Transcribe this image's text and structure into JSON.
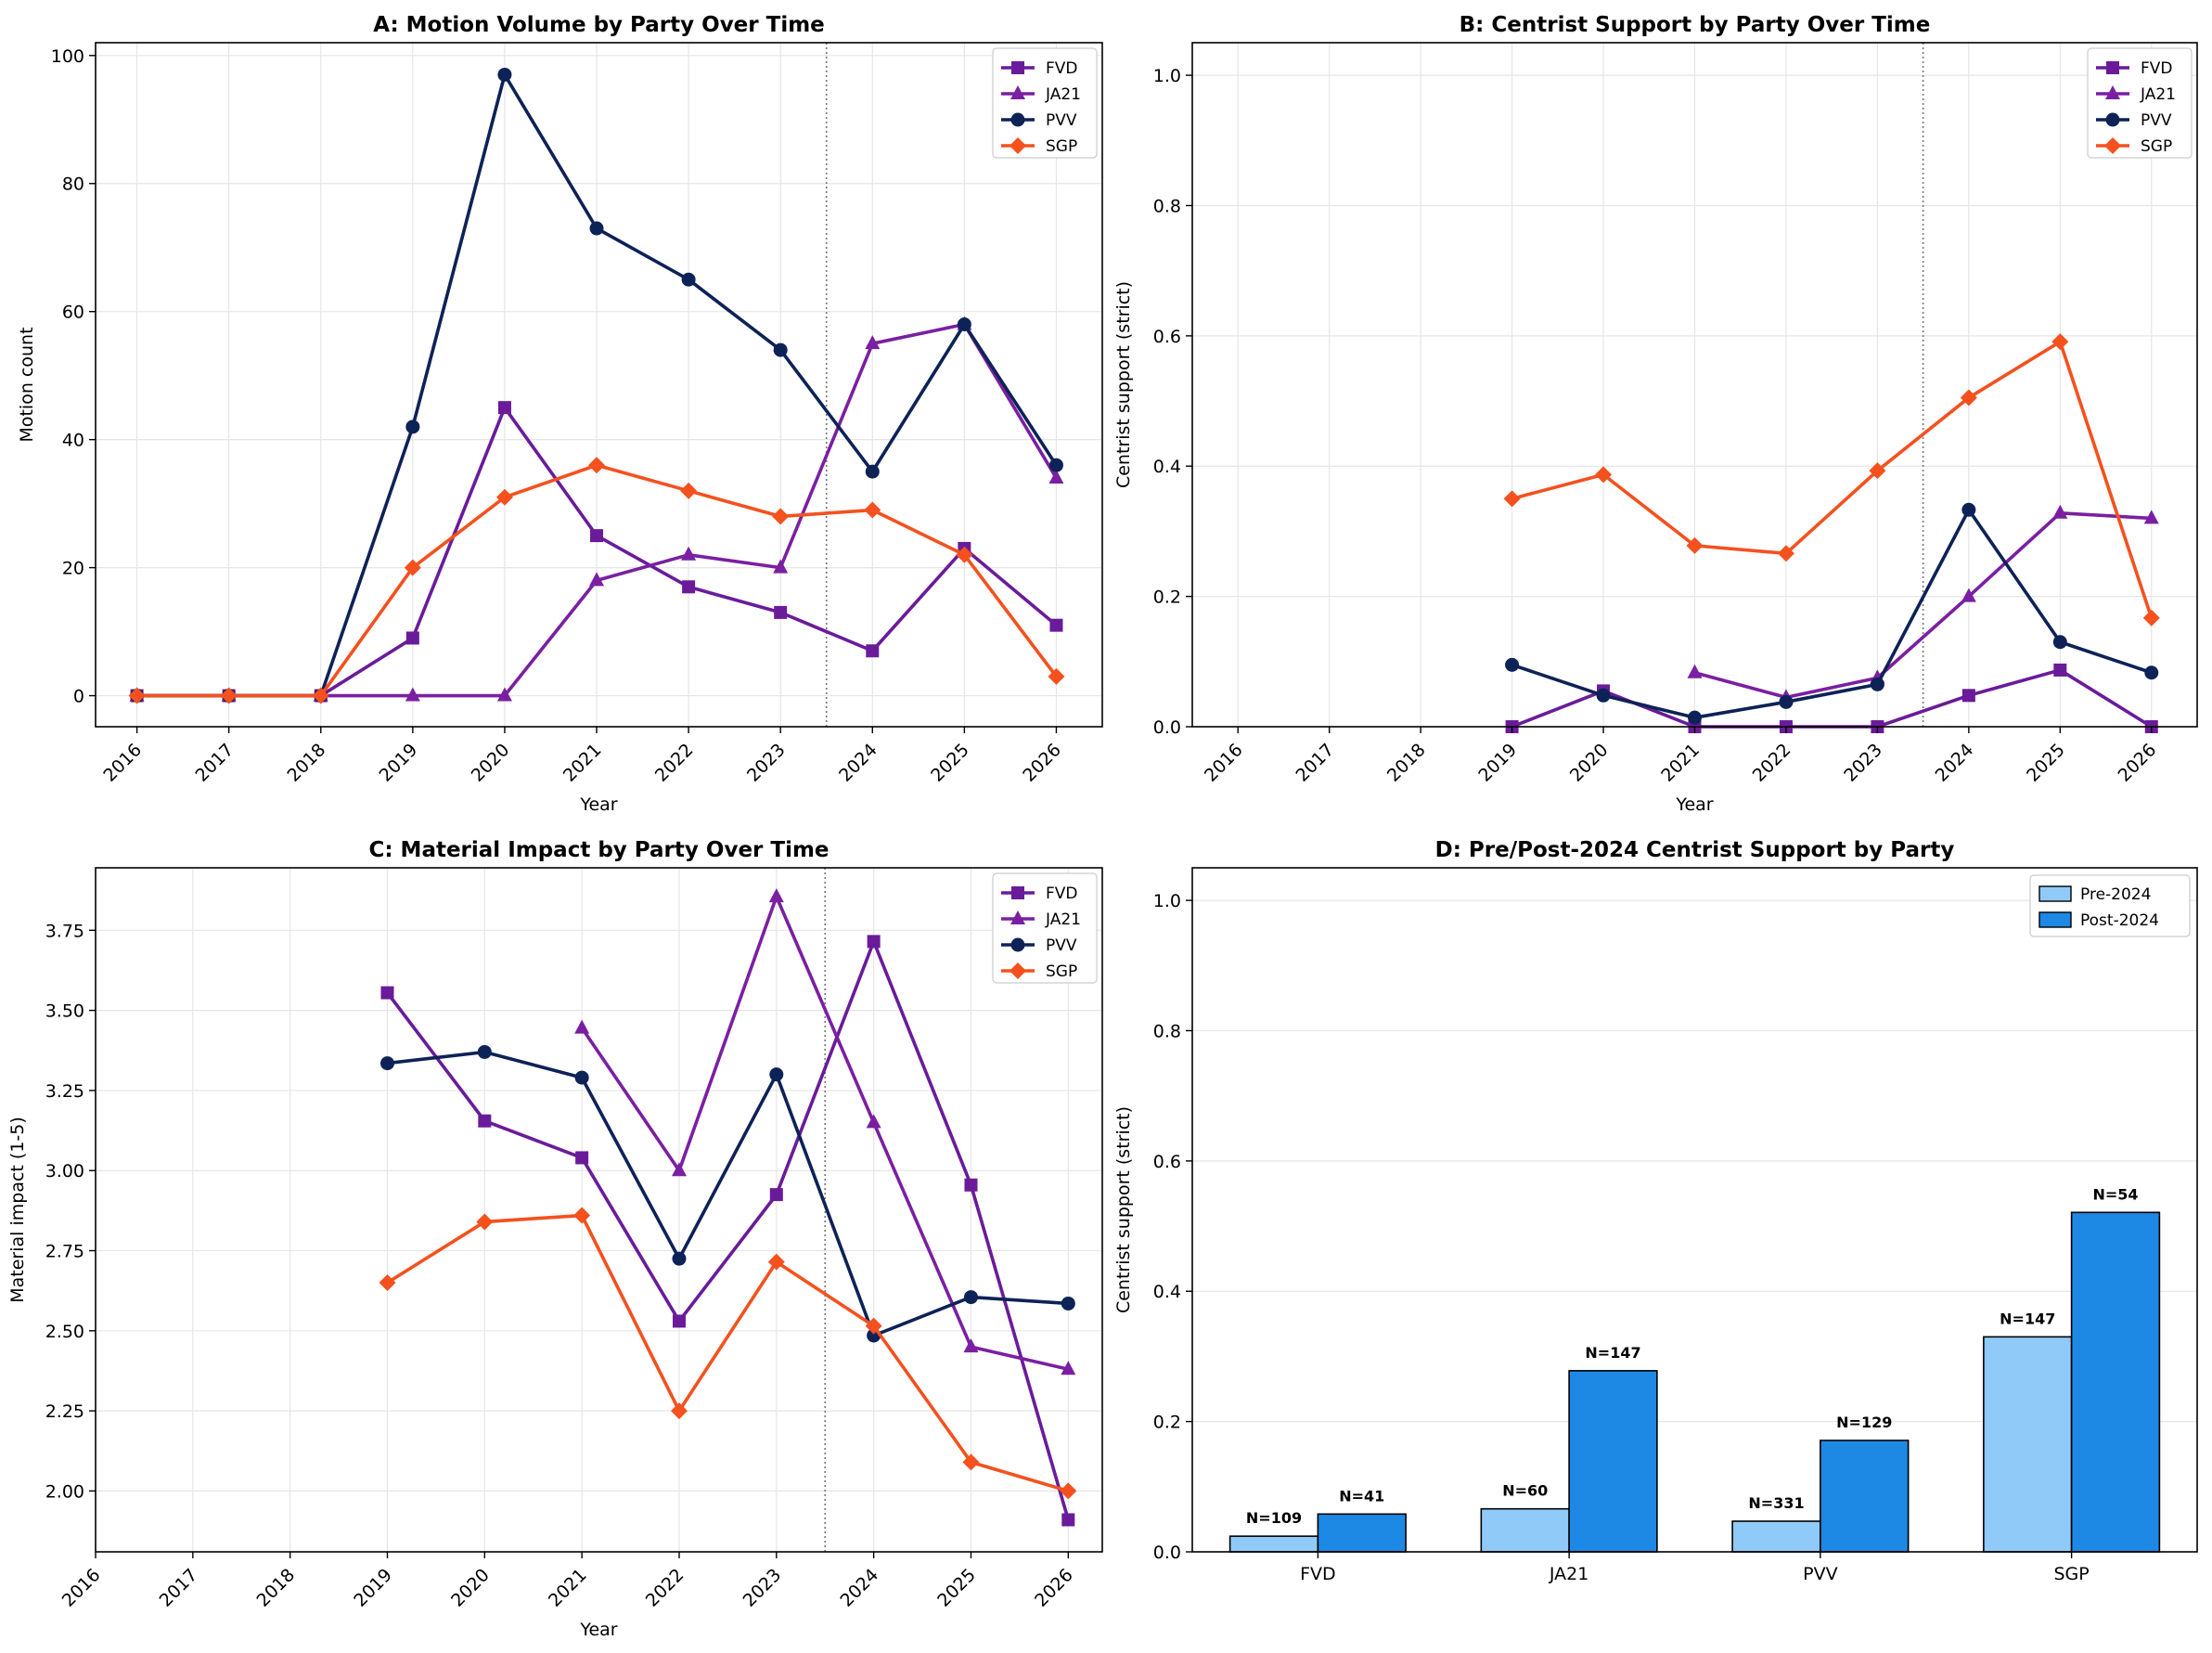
{
  "colors": {
    "FVD": "#6a1b9a",
    "JA21": "#7b1fa2",
    "PVV": "#0d2257",
    "SGP": "#f4511e",
    "pre": "#90caf9",
    "post": "#1e88e5"
  },
  "chart_data": [
    {
      "id": "A",
      "type": "line",
      "title": "A: Motion Volume by Party Over Time",
      "xlabel": "Year",
      "ylabel": "Motion count",
      "x": [
        2016,
        2017,
        2018,
        2019,
        2020,
        2021,
        2022,
        2023,
        2024,
        2025,
        2026
      ],
      "xlim": [
        2015.55,
        2026.5
      ],
      "ylim": [
        -4.85,
        102
      ],
      "yticks": [
        0,
        20,
        40,
        60,
        80,
        100
      ],
      "ytick_labels": [
        "0",
        "20",
        "40",
        "60",
        "80",
        "100"
      ],
      "xticks": [
        2016,
        2017,
        2018,
        2019,
        2020,
        2021,
        2022,
        2023,
        2024,
        2025,
        2026
      ],
      "vline": 2023.5,
      "grid": true,
      "legend": "top-right",
      "series": [
        {
          "name": "FVD",
          "marker": "square",
          "values": [
            0,
            0,
            0,
            9,
            45,
            25,
            17,
            13,
            7,
            23,
            11
          ]
        },
        {
          "name": "JA21",
          "marker": "triangle",
          "values": [
            0,
            0,
            0,
            0,
            0,
            18,
            22,
            20,
            55,
            58,
            34
          ]
        },
        {
          "name": "PVV",
          "marker": "circle",
          "values": [
            0,
            0,
            0,
            42,
            97,
            73,
            65,
            54,
            35,
            58,
            36
          ]
        },
        {
          "name": "SGP",
          "marker": "diamond",
          "values": [
            0,
            0,
            0,
            20,
            31,
            36,
            32,
            28,
            29,
            22,
            3
          ]
        }
      ]
    },
    {
      "id": "B",
      "type": "line",
      "title": "B: Centrist Support by Party Over Time",
      "xlabel": "Year",
      "ylabel": "Centrist support (strict)",
      "x": [
        2016,
        2017,
        2018,
        2019,
        2020,
        2021,
        2022,
        2023,
        2024,
        2025,
        2026
      ],
      "xlim": [
        2015.5,
        2026.5
      ],
      "ylim": [
        0,
        1.05
      ],
      "yticks": [
        0,
        0.2,
        0.4,
        0.6,
        0.8,
        1.0
      ],
      "ytick_labels": [
        "0.0",
        "0.2",
        "0.4",
        "0.6",
        "0.8",
        "1.0"
      ],
      "xticks": [
        2016,
        2017,
        2018,
        2019,
        2020,
        2021,
        2022,
        2023,
        2024,
        2025,
        2026
      ],
      "vline": 2023.5,
      "grid": true,
      "legend": "top-right",
      "series": [
        {
          "name": "FVD",
          "marker": "square",
          "values": [
            null,
            null,
            null,
            0.0,
            0.055,
            0.0,
            0.0,
            0.0,
            0.048,
            0.087,
            0.0
          ]
        },
        {
          "name": "JA21",
          "marker": "triangle",
          "values": [
            null,
            null,
            null,
            null,
            null,
            0.083,
            0.045,
            0.075,
            0.2,
            0.328,
            0.32
          ]
        },
        {
          "name": "PVV",
          "marker": "circle",
          "values": [
            null,
            null,
            null,
            0.095,
            0.048,
            0.014,
            0.038,
            0.065,
            0.333,
            0.13,
            0.083
          ]
        },
        {
          "name": "SGP",
          "marker": "diamond",
          "values": [
            null,
            null,
            null,
            0.35,
            0.387,
            0.278,
            0.266,
            0.393,
            0.505,
            0.591,
            0.167
          ]
        }
      ]
    },
    {
      "id": "C",
      "type": "line",
      "title": "C: Material Impact by Party Over Time",
      "xlabel": "Year",
      "ylabel": "Material impact (1-5)",
      "x": [
        2016,
        2017,
        2018,
        2019,
        2020,
        2021,
        2022,
        2023,
        2024,
        2025,
        2026
      ],
      "xlim": [
        2016,
        2026.35
      ],
      "ylim": [
        1.81,
        3.945
      ],
      "yticks": [
        2.0,
        2.25,
        2.5,
        2.75,
        3.0,
        3.25,
        3.5,
        3.75
      ],
      "ytick_labels": [
        "2.00",
        "2.25",
        "2.50",
        "2.75",
        "3.00",
        "3.25",
        "3.50",
        "3.75"
      ],
      "xticks": [
        2016,
        2017,
        2018,
        2019,
        2020,
        2021,
        2022,
        2023,
        2024,
        2025,
        2026
      ],
      "vline": 2023.5,
      "grid": true,
      "legend": "top-right",
      "series": [
        {
          "name": "FVD",
          "marker": "square",
          "values": [
            null,
            null,
            null,
            3.555,
            3.155,
            3.04,
            2.53,
            2.925,
            3.715,
            2.955,
            1.91
          ]
        },
        {
          "name": "JA21",
          "marker": "triangle",
          "values": [
            null,
            null,
            null,
            null,
            null,
            3.445,
            3.0,
            3.855,
            3.15,
            2.45,
            2.38
          ]
        },
        {
          "name": "PVV",
          "marker": "circle",
          "values": [
            null,
            null,
            null,
            3.335,
            3.37,
            3.29,
            2.725,
            3.3,
            2.485,
            2.605,
            2.585
          ]
        },
        {
          "name": "SGP",
          "marker": "diamond",
          "values": [
            null,
            null,
            null,
            2.65,
            2.84,
            2.86,
            2.25,
            2.715,
            2.515,
            2.09,
            2.0
          ]
        }
      ]
    },
    {
      "id": "D",
      "type": "bar",
      "title": "D: Pre/Post-2024 Centrist Support by Party",
      "xlabel": "",
      "ylabel": "Centrist support (strict)",
      "categories": [
        "FVD",
        "JA21",
        "PVV",
        "SGP"
      ],
      "ylim": [
        0,
        1.05
      ],
      "yticks": [
        0,
        0.2,
        0.4,
        0.6,
        0.8,
        1.0
      ],
      "ytick_labels": [
        "0.0",
        "0.2",
        "0.4",
        "0.6",
        "0.8",
        "1.0"
      ],
      "grid": true,
      "legend": "top-right",
      "series": [
        {
          "name": "Pre-2024",
          "values": [
            0.024,
            0.066,
            0.047,
            0.33
          ],
          "labels": [
            "N=109",
            "N=60",
            "N=331",
            "N=147"
          ]
        },
        {
          "name": "Post-2024",
          "values": [
            0.058,
            0.278,
            0.171,
            0.521
          ],
          "labels": [
            "N=41",
            "N=147",
            "N=129",
            "N=54"
          ]
        }
      ]
    }
  ]
}
